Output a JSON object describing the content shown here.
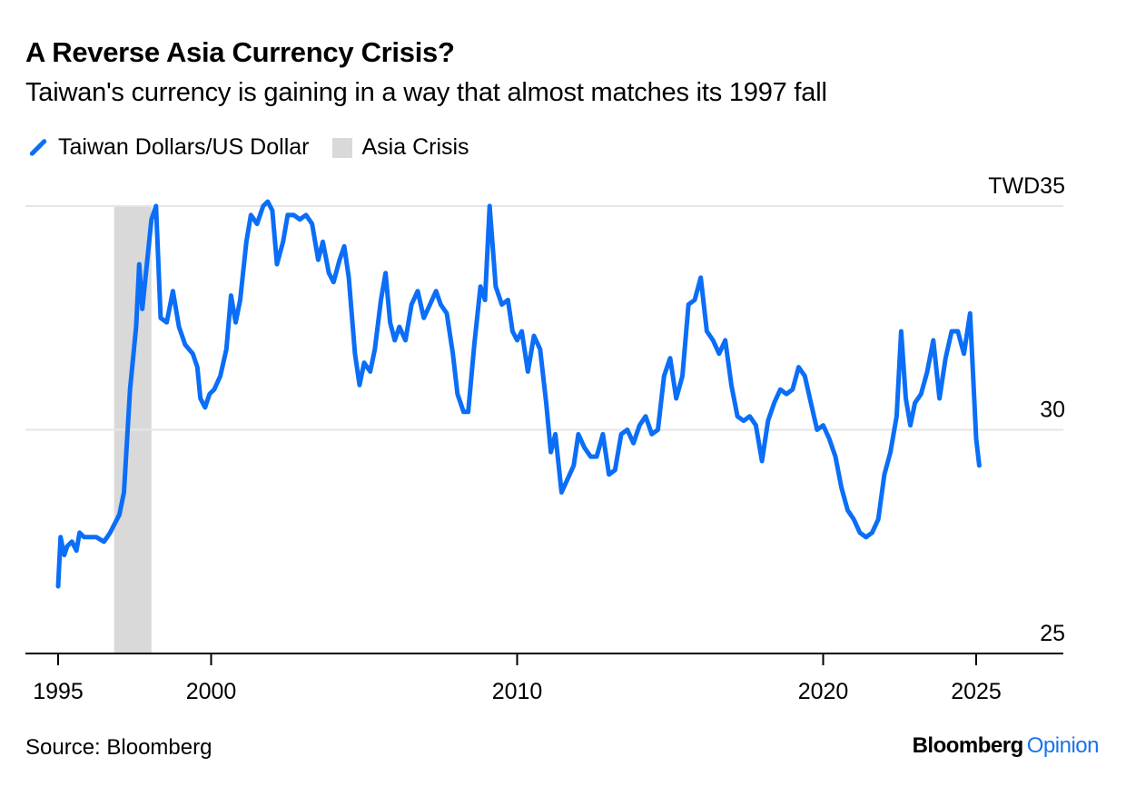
{
  "header": {
    "title": "A Reverse Asia Currency Crisis?",
    "subtitle": "Taiwan's currency is gaining in a way that almost matches its 1997 fall"
  },
  "legend": {
    "series_label": "Taiwan Dollars/US Dollar",
    "shade_label": "Asia Crisis"
  },
  "footer": {
    "source": "Source: Bloomberg",
    "brand_main": "Bloomberg",
    "brand_accent": "Opinion"
  },
  "colors": {
    "series": "#0b6ef7",
    "shade": "#d9d9d9",
    "grid": "#e6e6e6",
    "axis": "#000000",
    "brand_accent": "#1a73e8"
  },
  "chart_data": {
    "type": "line",
    "xlim": [
      1995,
      2028.2
    ],
    "ylim": [
      25,
      35
    ],
    "x_ticks": [
      {
        "value": 1995,
        "label": "1995"
      },
      {
        "value": 2000,
        "label": "2000"
      },
      {
        "value": 2010,
        "label": "2010"
      },
      {
        "value": 2020,
        "label": "2020"
      },
      {
        "value": 2025,
        "label": "2025"
      }
    ],
    "y_ticks": [
      {
        "value": 35,
        "label": "TWD35"
      },
      {
        "value": 30,
        "label": "30"
      },
      {
        "value": 25,
        "label": "25"
      }
    ],
    "shaded_regions": [
      {
        "name": "Asia Crisis",
        "start": 1996.83,
        "end": 1998.05
      }
    ],
    "grid": "horizontal",
    "legend_position": "top-left",
    "series": [
      {
        "name": "Taiwan Dollars/US Dollar",
        "points": [
          [
            1995.0,
            26.5
          ],
          [
            1995.08,
            27.6
          ],
          [
            1995.2,
            27.2
          ],
          [
            1995.3,
            27.4
          ],
          [
            1995.45,
            27.5
          ],
          [
            1995.6,
            27.3
          ],
          [
            1995.7,
            27.7
          ],
          [
            1995.85,
            27.6
          ],
          [
            1996.0,
            27.6
          ],
          [
            1996.25,
            27.6
          ],
          [
            1996.5,
            27.5
          ],
          [
            1996.7,
            27.7
          ],
          [
            1996.85,
            27.9
          ],
          [
            1997.0,
            28.1
          ],
          [
            1997.15,
            28.6
          ],
          [
            1997.35,
            30.9
          ],
          [
            1997.55,
            32.3
          ],
          [
            1997.65,
            33.7
          ],
          [
            1997.75,
            32.7
          ],
          [
            1997.9,
            33.7
          ],
          [
            1998.05,
            34.7
          ],
          [
            1998.2,
            35.0
          ],
          [
            1998.35,
            32.5
          ],
          [
            1998.55,
            32.4
          ],
          [
            1998.75,
            33.1
          ],
          [
            1998.95,
            32.3
          ],
          [
            1999.15,
            31.9
          ],
          [
            1999.4,
            31.7
          ],
          [
            1999.55,
            31.4
          ],
          [
            1999.65,
            30.7
          ],
          [
            1999.8,
            30.5
          ],
          [
            1999.95,
            30.8
          ],
          [
            2000.1,
            30.9
          ],
          [
            2000.3,
            31.2
          ],
          [
            2000.5,
            31.8
          ],
          [
            2000.65,
            33.0
          ],
          [
            2000.8,
            32.4
          ],
          [
            2000.95,
            32.9
          ],
          [
            2001.15,
            34.2
          ],
          [
            2001.3,
            34.8
          ],
          [
            2001.5,
            34.6
          ],
          [
            2001.7,
            35.0
          ],
          [
            2001.85,
            35.1
          ],
          [
            2002.0,
            34.9
          ],
          [
            2002.15,
            33.7
          ],
          [
            2002.35,
            34.2
          ],
          [
            2002.5,
            34.8
          ],
          [
            2002.7,
            34.8
          ],
          [
            2002.9,
            34.7
          ],
          [
            2003.1,
            34.8
          ],
          [
            2003.3,
            34.6
          ],
          [
            2003.5,
            33.8
          ],
          [
            2003.65,
            34.2
          ],
          [
            2003.85,
            33.5
          ],
          [
            2004.0,
            33.3
          ],
          [
            2004.2,
            33.8
          ],
          [
            2004.35,
            34.1
          ],
          [
            2004.5,
            33.4
          ],
          [
            2004.7,
            31.7
          ],
          [
            2004.85,
            31.0
          ],
          [
            2005.0,
            31.5
          ],
          [
            2005.2,
            31.3
          ],
          [
            2005.35,
            31.8
          ],
          [
            2005.55,
            32.9
          ],
          [
            2005.7,
            33.5
          ],
          [
            2005.85,
            32.4
          ],
          [
            2006.0,
            32.0
          ],
          [
            2006.15,
            32.3
          ],
          [
            2006.35,
            32.0
          ],
          [
            2006.55,
            32.8
          ],
          [
            2006.75,
            33.1
          ],
          [
            2006.95,
            32.5
          ],
          [
            2007.15,
            32.8
          ],
          [
            2007.35,
            33.1
          ],
          [
            2007.5,
            32.8
          ],
          [
            2007.7,
            32.6
          ],
          [
            2007.9,
            31.7
          ],
          [
            2008.05,
            30.8
          ],
          [
            2008.25,
            30.4
          ],
          [
            2008.4,
            30.4
          ],
          [
            2008.6,
            31.9
          ],
          [
            2008.8,
            33.2
          ],
          [
            2008.95,
            32.9
          ],
          [
            2009.1,
            35.0
          ],
          [
            2009.3,
            33.2
          ],
          [
            2009.5,
            32.8
          ],
          [
            2009.7,
            32.9
          ],
          [
            2009.85,
            32.2
          ],
          [
            2010.0,
            32.0
          ],
          [
            2010.15,
            32.2
          ],
          [
            2010.35,
            31.3
          ],
          [
            2010.55,
            32.1
          ],
          [
            2010.75,
            31.8
          ],
          [
            2010.95,
            30.6
          ],
          [
            2011.1,
            29.5
          ],
          [
            2011.25,
            29.9
          ],
          [
            2011.45,
            28.6
          ],
          [
            2011.65,
            28.9
          ],
          [
            2011.85,
            29.2
          ],
          [
            2012.0,
            29.9
          ],
          [
            2012.2,
            29.6
          ],
          [
            2012.4,
            29.4
          ],
          [
            2012.6,
            29.4
          ],
          [
            2012.8,
            29.9
          ],
          [
            2013.0,
            29.0
          ],
          [
            2013.2,
            29.1
          ],
          [
            2013.4,
            29.9
          ],
          [
            2013.6,
            30.0
          ],
          [
            2013.8,
            29.7
          ],
          [
            2014.0,
            30.1
          ],
          [
            2014.2,
            30.3
          ],
          [
            2014.4,
            29.9
          ],
          [
            2014.6,
            30.0
          ],
          [
            2014.8,
            31.2
          ],
          [
            2015.0,
            31.6
          ],
          [
            2015.2,
            30.7
          ],
          [
            2015.4,
            31.2
          ],
          [
            2015.6,
            32.8
          ],
          [
            2015.8,
            32.9
          ],
          [
            2016.0,
            33.4
          ],
          [
            2016.2,
            32.2
          ],
          [
            2016.4,
            32.0
          ],
          [
            2016.6,
            31.7
          ],
          [
            2016.8,
            32.0
          ],
          [
            2017.0,
            31.0
          ],
          [
            2017.2,
            30.3
          ],
          [
            2017.4,
            30.2
          ],
          [
            2017.6,
            30.3
          ],
          [
            2017.8,
            30.1
          ],
          [
            2018.0,
            29.3
          ],
          [
            2018.2,
            30.2
          ],
          [
            2018.4,
            30.6
          ],
          [
            2018.6,
            30.9
          ],
          [
            2018.8,
            30.8
          ],
          [
            2019.0,
            30.9
          ],
          [
            2019.2,
            31.4
          ],
          [
            2019.4,
            31.2
          ],
          [
            2019.6,
            30.6
          ],
          [
            2019.8,
            30.0
          ],
          [
            2020.0,
            30.1
          ],
          [
            2020.2,
            29.8
          ],
          [
            2020.4,
            29.4
          ],
          [
            2020.6,
            28.7
          ],
          [
            2020.8,
            28.2
          ],
          [
            2021.0,
            28.0
          ],
          [
            2021.2,
            27.7
          ],
          [
            2021.4,
            27.6
          ],
          [
            2021.6,
            27.7
          ],
          [
            2021.8,
            28.0
          ],
          [
            2022.0,
            29.0
          ],
          [
            2022.2,
            29.5
          ],
          [
            2022.4,
            30.3
          ],
          [
            2022.55,
            32.2
          ],
          [
            2022.7,
            30.7
          ],
          [
            2022.85,
            30.1
          ],
          [
            2023.0,
            30.6
          ],
          [
            2023.2,
            30.8
          ],
          [
            2023.4,
            31.3
          ],
          [
            2023.6,
            32.0
          ],
          [
            2023.8,
            30.7
          ],
          [
            2024.0,
            31.6
          ],
          [
            2024.2,
            32.2
          ],
          [
            2024.4,
            32.2
          ],
          [
            2024.6,
            31.7
          ],
          [
            2024.8,
            32.6
          ],
          [
            2025.0,
            29.8
          ],
          [
            2025.1,
            29.2
          ]
        ]
      }
    ]
  }
}
